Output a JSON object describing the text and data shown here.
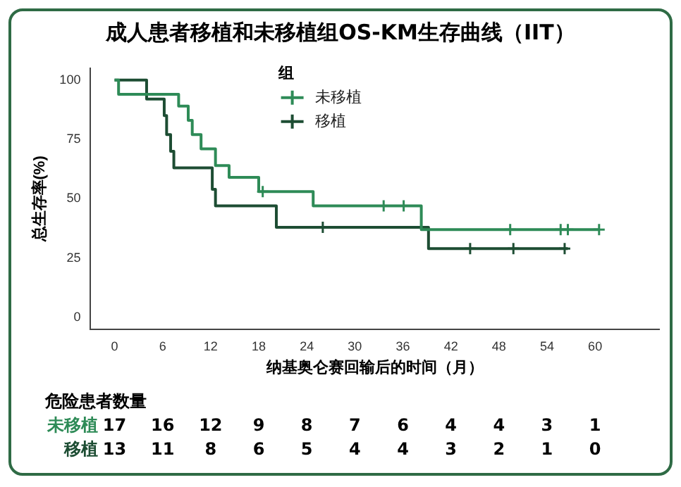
{
  "chart_data": {
    "type": "step",
    "title": "成人患者移植和未移植组OS-KM生存曲线（IIT）",
    "xlabel": "纳基奥仑赛回输后的时间（月）",
    "ylabel": "总生存率(%)",
    "legend_title": "组",
    "legend": "top",
    "grid": false,
    "marker": "none",
    "line_style": "solid",
    "xlim": [
      -3,
      68
    ],
    "xticks": [
      0,
      6,
      12,
      18,
      24,
      30,
      36,
      42,
      48,
      54,
      60
    ],
    "ylim": [
      -5,
      105
    ],
    "yticks": [
      0,
      25,
      50,
      75,
      100
    ],
    "series": [
      {
        "name": "未移植",
        "color": "#2e8b57",
        "x": [
          0,
          0.5,
          8,
          9.2,
          9.7,
          10.8,
          12.6,
          14.3,
          18,
          24.8,
          38.3,
          60.5
        ],
        "values": [
          100,
          94,
          89,
          83,
          77,
          71,
          64,
          59,
          53,
          47,
          37,
          37
        ]
      },
      {
        "name": "移植",
        "color": "#1d4d33",
        "x": [
          0,
          4,
          6.2,
          6.5,
          7,
          7.4,
          12.2,
          12.6,
          20.2,
          39.2,
          56.6
        ],
        "values": [
          100,
          92,
          85,
          77,
          70,
          63,
          54,
          47,
          38,
          29,
          29
        ]
      },
      {
        "type": "scatter",
        "marker": "cross",
        "color": "#2e8b57",
        "x": [
          18.5,
          33.6,
          36.1,
          49.4,
          55.7,
          56.6,
          60.5
        ],
        "values": [
          53,
          47,
          47,
          37,
          37,
          37,
          37
        ]
      },
      {
        "type": "scatter",
        "marker": "cross",
        "color": "#1d4d33",
        "x": [
          26,
          44.4,
          49.8,
          56.2
        ],
        "values": [
          38,
          29,
          29,
          29
        ]
      }
    ],
    "annotations": [
      "危险患者数量",
      "未移植",
      "17",
      "16",
      "12",
      "9",
      "8",
      "7",
      "6",
      "4",
      "4",
      "3",
      "1",
      "移植",
      "13",
      "11",
      "8",
      "6",
      "5",
      "4",
      "4",
      "3",
      "2",
      "1",
      "0"
    ]
  }
}
